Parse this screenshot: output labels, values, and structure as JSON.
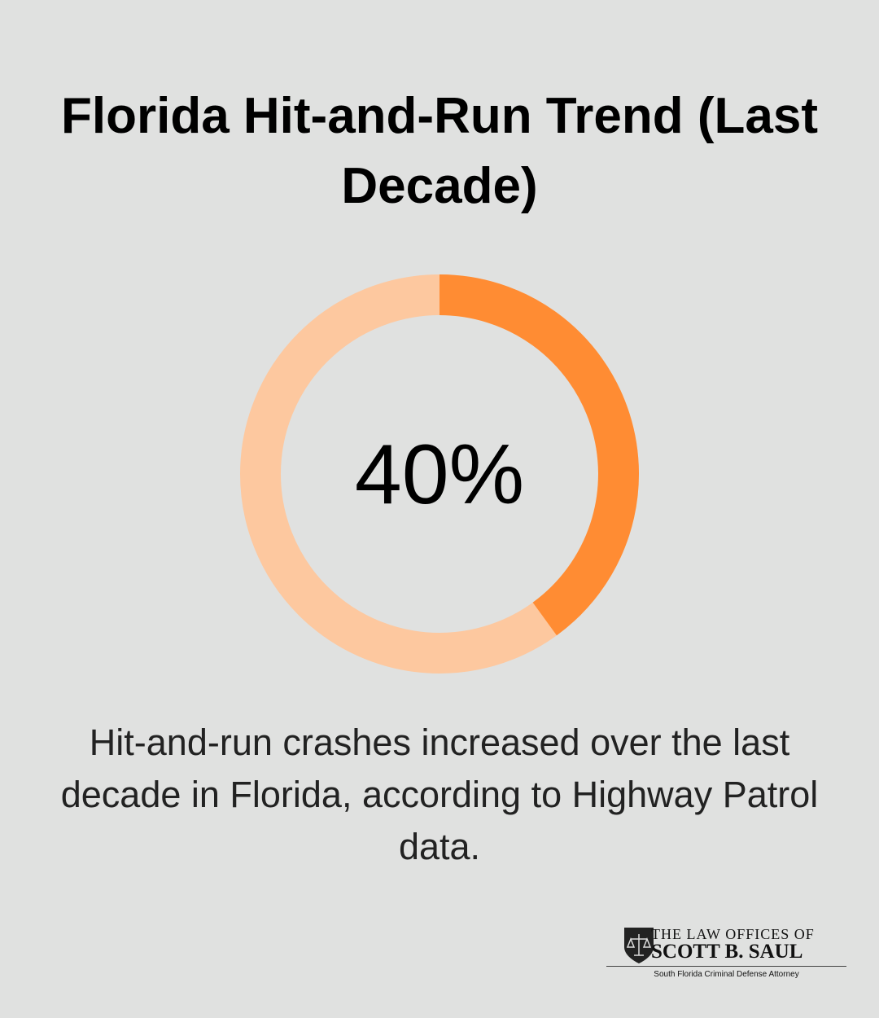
{
  "chart_data": {
    "type": "donut",
    "title": "Florida Hit-and-Run Trend (Last Decade)",
    "values": [
      40
    ],
    "value_labels": [
      "40%"
    ],
    "ylim": [
      0,
      100
    ],
    "color": "#ff8c33",
    "track_color": "#fdc89f",
    "description": "Hit-and-run crashes increased over the last decade in Florida, according to Highway Patrol data."
  },
  "footer": {
    "line1": "THE LAW OFFICES OF",
    "line2": "SCOTT B. SAUL",
    "tagline": "South Florida Criminal Defense Attorney"
  }
}
